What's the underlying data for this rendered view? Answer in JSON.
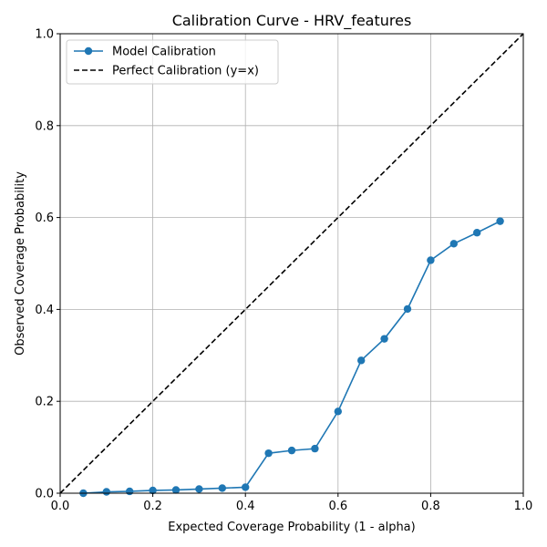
{
  "chart_data": {
    "type": "line",
    "title": "Calibration Curve - HRV_features",
    "xlabel": "Expected Coverage Probability (1 - alpha)",
    "ylabel": "Observed Coverage Probability",
    "xlim": [
      0.0,
      1.0
    ],
    "ylim": [
      0.0,
      1.0
    ],
    "xticks": [
      "0.0",
      "0.2",
      "0.4",
      "0.6",
      "0.8",
      "1.0"
    ],
    "yticks": [
      "0.0",
      "0.2",
      "0.4",
      "0.6",
      "0.8",
      "1.0"
    ],
    "grid": true,
    "legend_position": "top-left",
    "series": [
      {
        "name": "Model Calibration",
        "color": "#1f77b4",
        "style": "solid-with-circle-markers",
        "x": [
          0.05,
          0.1,
          0.15,
          0.2,
          0.25,
          0.3,
          0.35,
          0.4,
          0.45,
          0.5,
          0.55,
          0.6,
          0.65,
          0.7,
          0.75,
          0.8,
          0.85,
          0.9,
          0.95
        ],
        "y": [
          0.0,
          0.003,
          0.004,
          0.006,
          0.007,
          0.009,
          0.011,
          0.013,
          0.087,
          0.093,
          0.097,
          0.178,
          0.289,
          0.336,
          0.401,
          0.507,
          0.543,
          0.567,
          0.592
        ]
      },
      {
        "name": "Perfect Calibration (y=x)",
        "color": "#000000",
        "style": "dashed",
        "x": [
          0.0,
          1.0
        ],
        "y": [
          0.0,
          1.0
        ]
      }
    ]
  }
}
